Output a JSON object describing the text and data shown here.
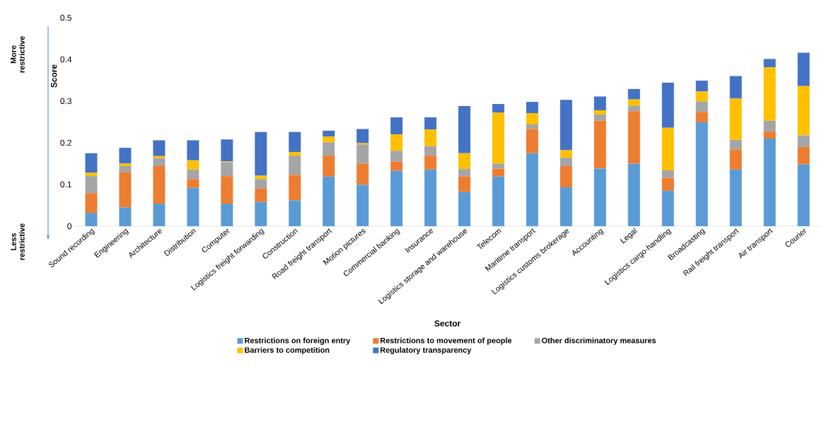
{
  "chart_data": {
    "type": "bar",
    "stacked": true,
    "xlabel": "Sector",
    "ylabel": "Score",
    "annotations": [
      "More restrictive",
      "Less restrictive"
    ],
    "categories": [
      "Sound recording",
      "Engineering",
      "Architecture",
      "Distribution",
      "Computer",
      "Logistics freight forwarding",
      "Construction",
      "Road freight transport",
      "Motion pictures",
      "Commercial banking",
      "Insurance",
      "Logistics storage and warehouse",
      "Telecom",
      "Maritime transport",
      "Logistics customs brokerage",
      "Accounting",
      "Legal",
      "Logistics cargo-handling",
      "Broadcasting",
      "Rail freight transport",
      "Air transport",
      "Courier"
    ],
    "series": [
      {
        "name": "Restrictions on foreign entry",
        "color": "#5b9bd5",
        "values": [
          0.032,
          0.045,
          0.054,
          0.092,
          0.054,
          0.058,
          0.062,
          0.119,
          0.099,
          0.133,
          0.136,
          0.082,
          0.119,
          0.175,
          0.093,
          0.138,
          0.15,
          0.085,
          0.249,
          0.136,
          0.21,
          0.148
        ]
      },
      {
        "name": "Restrictions to movement of people",
        "color": "#ed7d31",
        "values": [
          0.047,
          0.084,
          0.09,
          0.021,
          0.066,
          0.032,
          0.061,
          0.05,
          0.051,
          0.022,
          0.033,
          0.037,
          0.019,
          0.058,
          0.051,
          0.115,
          0.126,
          0.031,
          0.025,
          0.048,
          0.017,
          0.042
        ]
      },
      {
        "name": "Other discriminatory measures",
        "color": "#a5a5a5",
        "values": [
          0.041,
          0.015,
          0.019,
          0.023,
          0.033,
          0.023,
          0.046,
          0.032,
          0.046,
          0.026,
          0.023,
          0.018,
          0.012,
          0.011,
          0.02,
          0.015,
          0.013,
          0.018,
          0.025,
          0.023,
          0.026,
          0.028
        ]
      },
      {
        "name": "Barriers to competition",
        "color": "#ffc000",
        "values": [
          0.008,
          0.006,
          0.005,
          0.022,
          0.002,
          0.008,
          0.009,
          0.014,
          0.003,
          0.039,
          0.04,
          0.038,
          0.122,
          0.027,
          0.018,
          0.01,
          0.015,
          0.102,
          0.024,
          0.099,
          0.128,
          0.118
        ]
      },
      {
        "name": "Regulatory transparency",
        "color": "#4472c4",
        "values": [
          0.047,
          0.038,
          0.038,
          0.048,
          0.053,
          0.105,
          0.048,
          0.014,
          0.034,
          0.041,
          0.029,
          0.113,
          0.021,
          0.027,
          0.121,
          0.033,
          0.025,
          0.108,
          0.026,
          0.054,
          0.02,
          0.08
        ]
      }
    ],
    "ylim": [
      0,
      0.5
    ],
    "yticks": [
      0,
      0.1,
      0.2,
      0.3,
      0.4,
      0.5
    ],
    "grid": false,
    "legend": "bottom"
  }
}
